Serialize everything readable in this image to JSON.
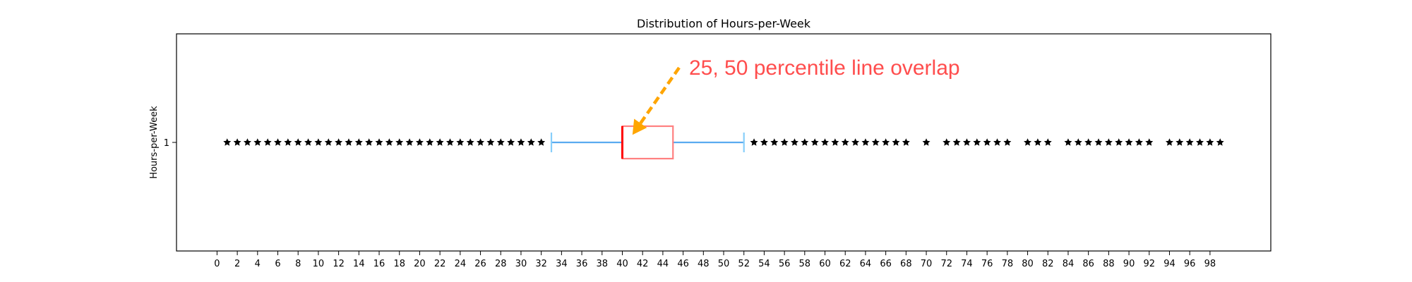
{
  "chart_data": {
    "type": "boxplot",
    "title": "Distribution of Hours-per-Week",
    "xlabel": "",
    "ylabel": "Hours-per-Week",
    "xlim": [
      -4,
      104
    ],
    "x_ticks": [
      0,
      2,
      4,
      6,
      8,
      10,
      12,
      14,
      16,
      18,
      20,
      22,
      24,
      26,
      28,
      30,
      32,
      34,
      36,
      38,
      40,
      42,
      44,
      46,
      48,
      50,
      52,
      54,
      56,
      58,
      60,
      62,
      64,
      66,
      68,
      70,
      72,
      74,
      76,
      78,
      80,
      82,
      84,
      86,
      88,
      90,
      92,
      94,
      96,
      98
    ],
    "y_ticks": [
      "1"
    ],
    "grid": false,
    "orientation": "horizontal",
    "box": {
      "position": 1,
      "whisker_low": 33,
      "q1": 40,
      "median": 40,
      "q3": 45,
      "whisker_high": 52
    },
    "outliers": [
      1,
      2,
      3,
      4,
      5,
      6,
      7,
      8,
      9,
      10,
      11,
      12,
      13,
      14,
      15,
      16,
      17,
      18,
      19,
      20,
      21,
      22,
      23,
      24,
      25,
      26,
      27,
      28,
      29,
      30,
      31,
      32,
      53,
      54,
      55,
      56,
      57,
      58,
      59,
      60,
      61,
      62,
      63,
      64,
      65,
      66,
      67,
      68,
      70,
      72,
      73,
      74,
      75,
      76,
      77,
      78,
      80,
      81,
      82,
      84,
      85,
      86,
      87,
      88,
      89,
      90,
      91,
      92,
      94,
      95,
      96,
      97,
      98,
      99
    ],
    "annotation": {
      "text": "25, 50 percentile line overlap",
      "text_x": 47,
      "target_x": 41,
      "target_y": 1.07
    },
    "colors": {
      "box": "#ff8080",
      "median": "#ff0000",
      "whisker": "#5aabf0",
      "cap": "#87cefa",
      "outlier": "#000000",
      "annotation_text": "#ff4d4d",
      "arrow": "#ffa500"
    }
  }
}
